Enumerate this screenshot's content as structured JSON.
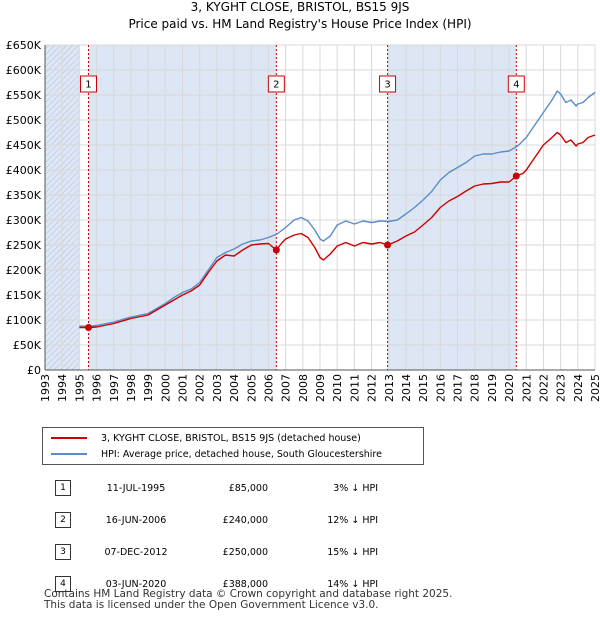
{
  "title": "3, KYGHT CLOSE, BRISTOL, BS15 9JS",
  "subtitle": "Price paid vs. HM Land Registry's House Price Index (HPI)",
  "colors": {
    "price": "#cc0000",
    "hpi": "#5b8cc9",
    "shade": "#dde6f4",
    "grid": "#d8d8d8",
    "marker_line": "#cc0000"
  },
  "chart_data": {
    "type": "line",
    "title": "3, KYGHT CLOSE, BRISTOL, BS15 9JS",
    "subtitle": "Price paid vs. HM Land Registry's House Price Index (HPI)",
    "xlabel": "",
    "ylabel": "",
    "xlim": [
      1993.0,
      2025.0
    ],
    "ylim": [
      0,
      650000
    ],
    "grid": true,
    "y_ticks": [
      {
        "value": 0,
        "label": "£0"
      },
      {
        "value": 50000,
        "label": "£50K"
      },
      {
        "value": 100000,
        "label": "£100K"
      },
      {
        "value": 150000,
        "label": "£150K"
      },
      {
        "value": 200000,
        "label": "£200K"
      },
      {
        "value": 250000,
        "label": "£250K"
      },
      {
        "value": 300000,
        "label": "£300K"
      },
      {
        "value": 350000,
        "label": "£350K"
      },
      {
        "value": 400000,
        "label": "£400K"
      },
      {
        "value": 450000,
        "label": "£450K"
      },
      {
        "value": 500000,
        "label": "£500K"
      },
      {
        "value": 550000,
        "label": "£550K"
      },
      {
        "value": 600000,
        "label": "£600K"
      },
      {
        "value": 650000,
        "label": "£650K"
      }
    ],
    "x_ticks": [
      "1993",
      "1994",
      "1995",
      "1996",
      "1997",
      "1998",
      "1999",
      "2000",
      "2001",
      "2002",
      "2003",
      "2004",
      "2005",
      "2006",
      "2007",
      "2008",
      "2009",
      "2010",
      "2011",
      "2012",
      "2013",
      "2014",
      "2015",
      "2016",
      "2017",
      "2018",
      "2019",
      "2020",
      "2021",
      "2022",
      "2023",
      "2024",
      "2025"
    ],
    "data_start": 1995.0,
    "shaded_ranges": [
      [
        1993.0,
        1995.0
      ],
      [
        1995.53,
        2006.46
      ],
      [
        2012.93,
        2020.42
      ],
      [
        2025.0,
        2025.1
      ]
    ],
    "series": [
      {
        "name": "3, KYGHT CLOSE, BRISTOL, BS15 9JS (detached house)",
        "color": "#cc0000",
        "points": [
          [
            1995.0,
            85000
          ],
          [
            1995.53,
            85000
          ],
          [
            1996.0,
            86000
          ],
          [
            1997.0,
            93000
          ],
          [
            1998.0,
            103000
          ],
          [
            1999.0,
            110000
          ],
          [
            2000.0,
            130000
          ],
          [
            2000.5,
            140000
          ],
          [
            2001.0,
            150000
          ],
          [
            2001.5,
            158000
          ],
          [
            2002.0,
            170000
          ],
          [
            2002.5,
            195000
          ],
          [
            2003.0,
            218000
          ],
          [
            2003.5,
            230000
          ],
          [
            2004.0,
            228000
          ],
          [
            2004.5,
            240000
          ],
          [
            2005.0,
            250000
          ],
          [
            2005.5,
            252000
          ],
          [
            2006.0,
            253000
          ],
          [
            2006.46,
            240000
          ],
          [
            2006.8,
            255000
          ],
          [
            2007.0,
            262000
          ],
          [
            2007.5,
            270000
          ],
          [
            2007.9,
            273000
          ],
          [
            2008.3,
            265000
          ],
          [
            2008.7,
            245000
          ],
          [
            2009.0,
            225000
          ],
          [
            2009.2,
            220000
          ],
          [
            2009.6,
            232000
          ],
          [
            2010.0,
            248000
          ],
          [
            2010.5,
            255000
          ],
          [
            2011.0,
            248000
          ],
          [
            2011.5,
            255000
          ],
          [
            2012.0,
            252000
          ],
          [
            2012.5,
            255000
          ],
          [
            2012.93,
            250000
          ],
          [
            2013.5,
            258000
          ],
          [
            2014.0,
            268000
          ],
          [
            2014.5,
            276000
          ],
          [
            2015.0,
            290000
          ],
          [
            2015.5,
            305000
          ],
          [
            2016.0,
            325000
          ],
          [
            2016.5,
            338000
          ],
          [
            2017.0,
            347000
          ],
          [
            2017.5,
            358000
          ],
          [
            2018.0,
            368000
          ],
          [
            2018.5,
            372000
          ],
          [
            2019.0,
            373000
          ],
          [
            2019.5,
            376000
          ],
          [
            2020.0,
            376000
          ],
          [
            2020.42,
            388000
          ],
          [
            2020.8,
            393000
          ],
          [
            2021.0,
            400000
          ],
          [
            2021.5,
            425000
          ],
          [
            2022.0,
            450000
          ],
          [
            2022.5,
            465000
          ],
          [
            2022.8,
            475000
          ],
          [
            2023.0,
            470000
          ],
          [
            2023.3,
            455000
          ],
          [
            2023.6,
            460000
          ],
          [
            2023.9,
            448000
          ],
          [
            2024.0,
            452000
          ],
          [
            2024.3,
            455000
          ],
          [
            2024.6,
            465000
          ],
          [
            2025.0,
            470000
          ]
        ]
      },
      {
        "name": "HPI: Average price, detached house, South Gloucestershire",
        "color": "#5b8cc9",
        "points": [
          [
            1995.0,
            88000
          ],
          [
            1995.5,
            87000
          ],
          [
            1996.0,
            89000
          ],
          [
            1997.0,
            96000
          ],
          [
            1998.0,
            106000
          ],
          [
            1999.0,
            113000
          ],
          [
            2000.0,
            133000
          ],
          [
            2000.5,
            145000
          ],
          [
            2001.0,
            155000
          ],
          [
            2001.5,
            162000
          ],
          [
            2002.0,
            175000
          ],
          [
            2002.5,
            200000
          ],
          [
            2003.0,
            225000
          ],
          [
            2003.5,
            235000
          ],
          [
            2004.0,
            242000
          ],
          [
            2004.5,
            252000
          ],
          [
            2005.0,
            258000
          ],
          [
            2005.5,
            260000
          ],
          [
            2006.0,
            265000
          ],
          [
            2006.5,
            272000
          ],
          [
            2007.0,
            285000
          ],
          [
            2007.5,
            300000
          ],
          [
            2007.9,
            305000
          ],
          [
            2008.3,
            298000
          ],
          [
            2008.7,
            280000
          ],
          [
            2009.0,
            262000
          ],
          [
            2009.2,
            258000
          ],
          [
            2009.6,
            268000
          ],
          [
            2010.0,
            290000
          ],
          [
            2010.5,
            298000
          ],
          [
            2011.0,
            292000
          ],
          [
            2011.5,
            298000
          ],
          [
            2012.0,
            295000
          ],
          [
            2012.5,
            298000
          ],
          [
            2013.0,
            297000
          ],
          [
            2013.5,
            300000
          ],
          [
            2014.0,
            312000
          ],
          [
            2014.5,
            325000
          ],
          [
            2015.0,
            340000
          ],
          [
            2015.5,
            357000
          ],
          [
            2016.0,
            380000
          ],
          [
            2016.5,
            395000
          ],
          [
            2017.0,
            405000
          ],
          [
            2017.5,
            415000
          ],
          [
            2018.0,
            428000
          ],
          [
            2018.5,
            432000
          ],
          [
            2019.0,
            432000
          ],
          [
            2019.5,
            436000
          ],
          [
            2020.0,
            438000
          ],
          [
            2020.5,
            448000
          ],
          [
            2021.0,
            465000
          ],
          [
            2021.5,
            490000
          ],
          [
            2022.0,
            515000
          ],
          [
            2022.5,
            540000
          ],
          [
            2022.8,
            558000
          ],
          [
            2023.0,
            552000
          ],
          [
            2023.3,
            535000
          ],
          [
            2023.6,
            540000
          ],
          [
            2023.9,
            528000
          ],
          [
            2024.0,
            532000
          ],
          [
            2024.3,
            535000
          ],
          [
            2024.6,
            545000
          ],
          [
            2025.0,
            555000
          ]
        ]
      }
    ],
    "transactions": [
      {
        "id": "1",
        "x": 1995.53,
        "value": 85000,
        "date": "11-JUL-1995",
        "price": "£85,000",
        "hpi": "3% ↓ HPI"
      },
      {
        "id": "2",
        "x": 2006.46,
        "value": 240000,
        "date": "16-JUN-2006",
        "price": "£240,000",
        "hpi": "12% ↓ HPI"
      },
      {
        "id": "3",
        "x": 2012.93,
        "value": 250000,
        "date": "07-DEC-2012",
        "price": "£250,000",
        "hpi": "15% ↓ HPI"
      },
      {
        "id": "4",
        "x": 2020.42,
        "value": 388000,
        "date": "03-JUN-2020",
        "price": "£388,000",
        "hpi": "14% ↓ HPI"
      }
    ],
    "marker_label_value": 600000
  },
  "legend": {
    "price_label": "3, KYGHT CLOSE, BRISTOL, BS15 9JS (detached house)",
    "hpi_label": "HPI: Average price, detached house, South Gloucestershire"
  },
  "footer": {
    "line1": "Contains HM Land Registry data © Crown copyright and database right 2025.",
    "line2": "This data is licensed under the Open Government Licence v3.0."
  }
}
